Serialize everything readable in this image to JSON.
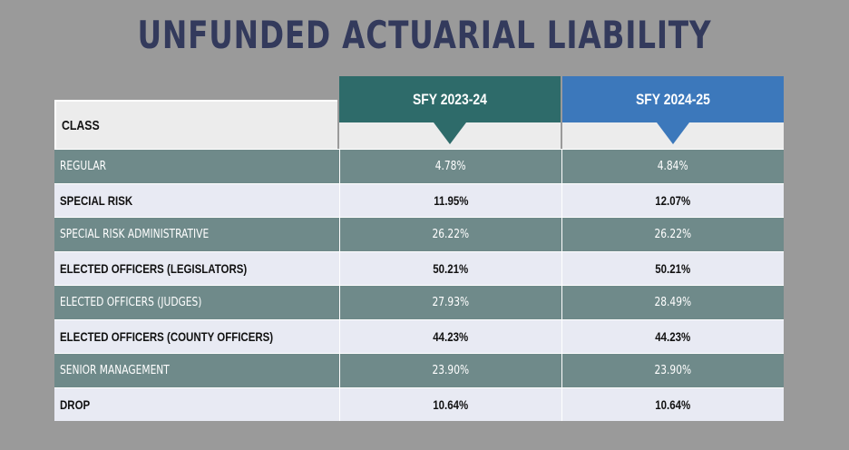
{
  "title": "UNFUNDED ACTUARIAL LIABILITY",
  "header": {
    "class_label": "CLASS",
    "col1": "SFY 2023-24",
    "col2": "SFY 2024-25"
  },
  "colors": {
    "col1_header": "#2e6b6a",
    "col2_header": "#3c78bb",
    "dark_row": "#6f8a8a",
    "light_row": "#e8eaf3",
    "title": "#333a5c"
  },
  "rows": [
    {
      "name": "REGULAR",
      "v1": "4.78%",
      "v2": "4.84%"
    },
    {
      "name": "SPECIAL RISK",
      "v1": "11.95%",
      "v2": "12.07%"
    },
    {
      "name": "SPECIAL RISK ADMINISTRATIVE",
      "v1": "26.22%",
      "v2": "26.22%"
    },
    {
      "name": "ELECTED OFFICERS (LEGISLATORS)",
      "v1": "50.21%",
      "v2": "50.21%"
    },
    {
      "name": "ELECTED OFFICERS (JUDGES)",
      "v1": "27.93%",
      "v2": "28.49%"
    },
    {
      "name": "ELECTED OFFICERS (COUNTY OFFICERS)",
      "v1": "44.23%",
      "v2": "44.23%"
    },
    {
      "name": "SENIOR MANAGEMENT",
      "v1": "23.90%",
      "v2": "23.90%"
    },
    {
      "name": "DROP",
      "v1": "10.64%",
      "v2": "10.64%"
    }
  ]
}
